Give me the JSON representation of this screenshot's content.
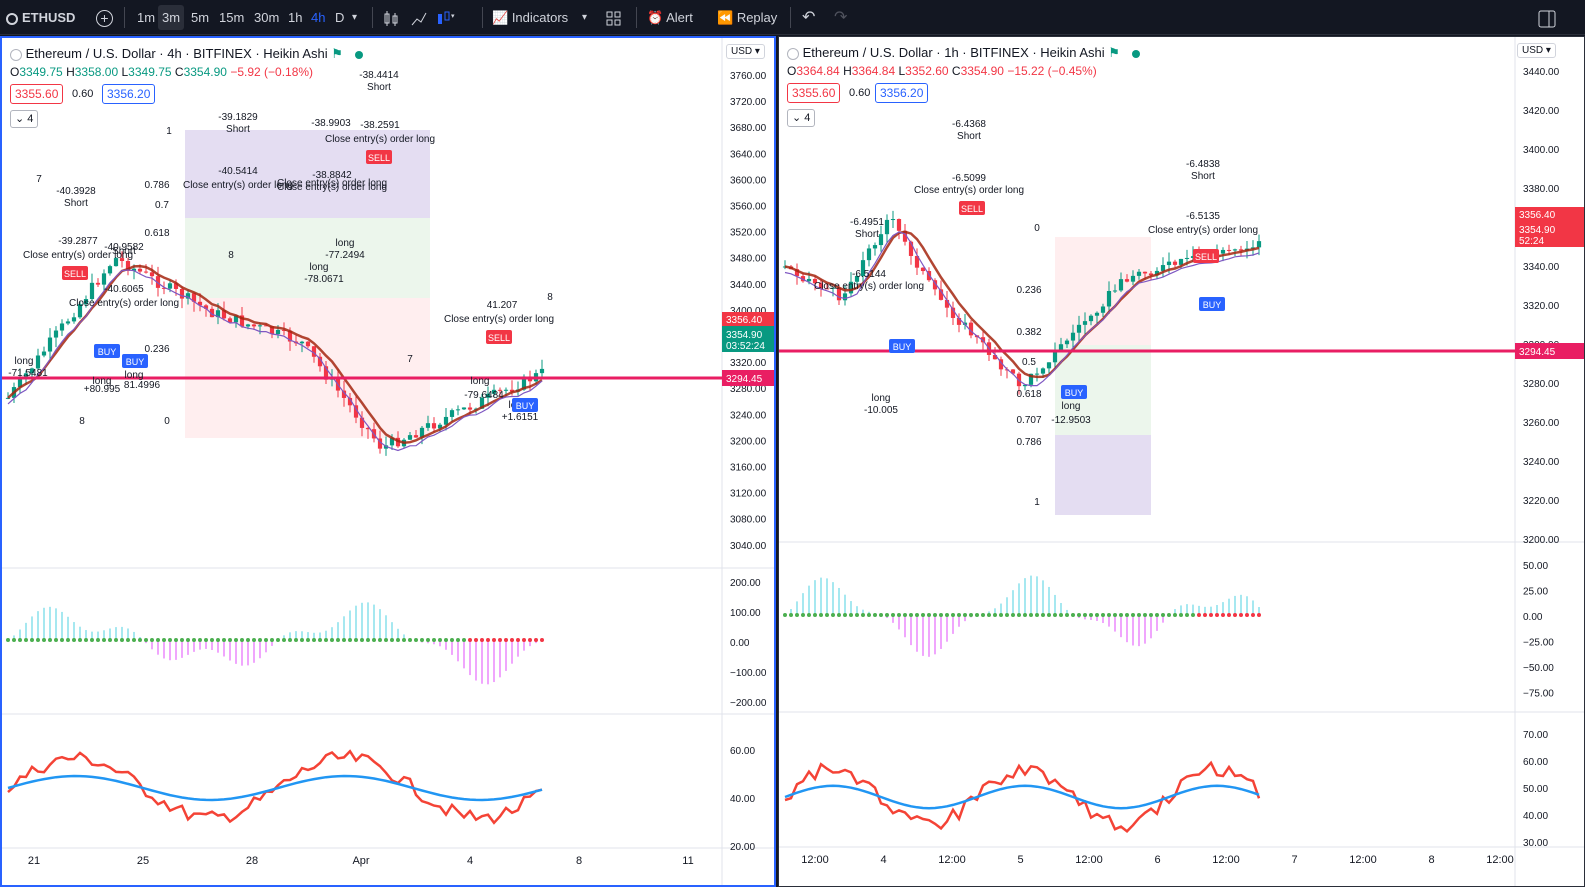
{
  "toolbar": {
    "symbol": "ETHUSD",
    "timeframes": [
      "1m",
      "3m",
      "5m",
      "15m",
      "30m",
      "1h",
      "4h",
      "D"
    ],
    "active_timeframe": "3m",
    "highlight_timeframe": "4h",
    "indicators_label": "Indicators",
    "alert_label": "Alert",
    "replay_label": "Replay"
  },
  "left_chart": {
    "title": "Ethereum / U.S. Dollar · 4h · BITFINEX · Heikin Ashi",
    "ohlc": {
      "o_label": "O",
      "o": "3349.75",
      "h_label": "H",
      "h": "3358.00",
      "l_label": "L",
      "l": "3349.75",
      "c_label": "C",
      "c": "3354.90",
      "chg": "−5.92 (−0.18%)"
    },
    "sell_price": "3355.60",
    "spread": "0.60",
    "buy_price": "3356.20",
    "collapse_count": "4",
    "currency": "USD",
    "price_axis": [
      "3760.00",
      "3720.00",
      "3680.00",
      "3640.00",
      "3600.00",
      "3560.00",
      "3520.00",
      "3480.00",
      "3440.00",
      "3400.00",
      "3360.00",
      "3320.00",
      "3280.00",
      "3240.00",
      "3200.00",
      "3160.00",
      "3120.00",
      "3080.00",
      "3040.00"
    ],
    "osc_axis": [
      "200.00",
      "100.00",
      "0.00",
      "−100.00",
      "−200.00"
    ],
    "rsi_axis": [
      "60.00",
      "40.00",
      "20.00"
    ],
    "time_axis": [
      "21",
      "25",
      "28",
      "Apr",
      "4",
      "8",
      "11"
    ],
    "price_tag_last": "3356.40",
    "price_tag_close": "3354.90",
    "price_tag_timer": "03:52:24",
    "price_tag_line": "3294.45",
    "annotations": [
      "-38.4414",
      "Short",
      "-39.1829",
      "Short",
      "-38.9903",
      "-38.2591",
      "Close entry(s) order long",
      "-40.3928",
      "Short",
      "-39.2877",
      "Close entry(s) order long",
      "-40.9582",
      "Short",
      "-40.6065",
      "Close entry(s) order long",
      "-40.5414",
      "Close entry(s) order long",
      "Close entry(s) order long",
      "-38.8842",
      "Close entry(s) order long",
      "long",
      "-77.2494",
      "long",
      "-78.0671",
      "41.207",
      "Close entry(s) order long",
      "long",
      "-79.6484",
      "long",
      "+1.6151",
      "long",
      "+80.995",
      "long",
      "81.4996",
      "long",
      "-71.5481",
      "0.236",
      "0.7",
      "0.618",
      "0.786",
      "1",
      "0",
      "7",
      "8",
      "8",
      "7",
      "8"
    ],
    "wave_labels": [
      "B",
      "C"
    ],
    "signals": [
      "SELL",
      "BUY",
      "BUY",
      "SELL",
      "SELL",
      "BUY"
    ]
  },
  "right_chart": {
    "title": "Ethereum / U.S. Dollar · 1h · BITFINEX · Heikin Ashi",
    "ohlc": {
      "o_label": "O",
      "o": "3364.84",
      "h_label": "H",
      "h": "3364.84",
      "l_label": "L",
      "l": "3352.60",
      "c_label": "C",
      "c": "3354.90",
      "chg": "−15.22 (−0.45%)"
    },
    "sell_price": "3355.60",
    "spread": "0.60",
    "buy_price": "3356.20",
    "collapse_count": "4",
    "currency": "USD",
    "price_axis": [
      "3440.00",
      "3420.00",
      "3400.00",
      "3380.00",
      "3360.00",
      "3340.00",
      "3320.00",
      "3300.00",
      "3280.00",
      "3260.00",
      "3240.00",
      "3220.00",
      "3200.00"
    ],
    "osc_axis": [
      "50.00",
      "25.00",
      "0.00",
      "−25.00",
      "−50.00",
      "−75.00"
    ],
    "rsi_axis": [
      "70.00",
      "60.00",
      "50.00",
      "40.00",
      "30.00"
    ],
    "time_axis": [
      "12:00",
      "4",
      "12:00",
      "5",
      "12:00",
      "6",
      "12:00",
      "7",
      "12:00",
      "8",
      "12:00"
    ],
    "price_tag_last": "3356.40",
    "price_tag_close": "3354.90",
    "price_tag_timer": "52:24",
    "price_tag_line": "3294.45",
    "annotations": [
      "-6.4368",
      "Short",
      "-6.5099",
      "Close entry(s) order long",
      "-6.4951",
      "Short",
      "-6.5144",
      "Close entry(s) order long",
      "-6.4838",
      "Short",
      "-6.5135",
      "Close entry(s) order long",
      "long",
      "-10.005",
      "long",
      "-12.9503",
      "0",
      "0.236",
      "0.382",
      "0.5",
      "0.618",
      "0.707",
      "0.786",
      "1"
    ],
    "signals": [
      "SELL",
      "BUY",
      "SELL",
      "BUY",
      "BUY"
    ]
  }
}
